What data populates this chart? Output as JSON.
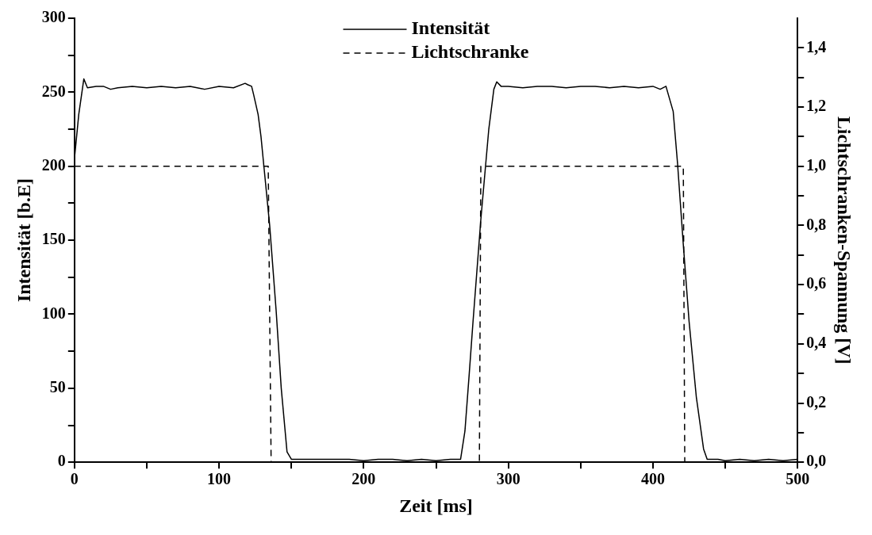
{
  "chart_data": {
    "type": "line",
    "xlabel": "Zeit [ms]",
    "ylabel": "Intensität [b.E]",
    "y2label": "Lichtschranken-Spannung [V]",
    "legend": "top",
    "xlim": [
      0,
      500
    ],
    "ylim": [
      0,
      300
    ],
    "y2lim": [
      0,
      1.5
    ],
    "xticks": [
      0,
      {
        "value": 50,
        "label": null
      },
      100,
      {
        "value": 150,
        "label": null
      },
      200,
      {
        "value": 250,
        "label": null
      },
      300,
      {
        "value": 350,
        "label": null
      },
      400,
      {
        "value": 450,
        "label": null
      },
      500
    ],
    "yticks": [
      0,
      {
        "value": 25,
        "label": null
      },
      50,
      {
        "value": 75,
        "label": null
      },
      100,
      {
        "value": 125,
        "label": null
      },
      150,
      {
        "value": 175,
        "label": null
      },
      200,
      {
        "value": 225,
        "label": null
      },
      250,
      {
        "value": 275,
        "label": null
      },
      300
    ],
    "y2ticks": [
      {
        "value": 0,
        "label": "0,0"
      },
      {
        "value": 0.1,
        "label": null
      },
      {
        "value": 0.2,
        "label": "0,2"
      },
      {
        "value": 0.3,
        "label": null
      },
      {
        "value": 0.4,
        "label": "0,4"
      },
      {
        "value": 0.5,
        "label": null
      },
      {
        "value": 0.6,
        "label": "0,6"
      },
      {
        "value": 0.7,
        "label": null
      },
      {
        "value": 0.8,
        "label": "0,8"
      },
      {
        "value": 0.9,
        "label": null
      },
      {
        "value": 1.0,
        "label": "1,0"
      },
      {
        "value": 1.1,
        "label": null
      },
      {
        "value": 1.2,
        "label": "1,2"
      },
      {
        "value": 1.3,
        "label": null
      },
      {
        "value": 1.4,
        "label": "1,4"
      }
    ],
    "series": [
      {
        "name": "Intensität",
        "color": "#000000",
        "line_style": "solid",
        "x": [
          0,
          3,
          6.5,
          9,
          15,
          20,
          25,
          30,
          40,
          50,
          60,
          70,
          80,
          90,
          100,
          110,
          118,
          120,
          122.5,
          124,
          127,
          129,
          131,
          135,
          139.5,
          143,
          147,
          150,
          160,
          170,
          180,
          190,
          200,
          210,
          220,
          230,
          240,
          250,
          260,
          267,
          270,
          273,
          275.6,
          281,
          286.5,
          290,
          292,
          295,
          300,
          310,
          320,
          330,
          340,
          350,
          360,
          370,
          380,
          390,
          400,
          405,
          409,
          414,
          417,
          421,
          425,
          430,
          435,
          437.5,
          445,
          450,
          460,
          470,
          480,
          490,
          500
        ],
        "values": [
          205,
          235,
          259,
          253,
          254,
          254,
          252,
          253,
          254,
          253,
          254,
          253,
          254,
          252,
          254,
          253,
          256,
          255,
          254,
          248,
          235,
          220,
          200,
          160,
          102,
          50,
          7,
          2,
          2,
          2,
          2,
          2,
          1,
          2,
          2,
          1,
          2,
          1,
          2,
          2,
          21,
          60,
          95,
          164,
          225,
          252,
          257,
          254,
          254,
          253,
          254,
          254,
          253,
          254,
          254,
          253,
          254,
          253,
          254,
          252,
          254,
          237,
          202,
          147,
          95,
          44,
          9,
          2,
          2,
          1,
          2,
          1,
          2,
          1,
          2
        ]
      },
      {
        "name": "Lichtschranke",
        "color": "#000000",
        "line_style": "dashed",
        "axis": "y2",
        "x": [
          0,
          134,
          136,
          280,
          281,
          421,
          422,
          500
        ],
        "values": [
          1.0,
          1.0,
          0.0,
          0.0,
          1.0,
          1.0,
          0.0,
          0.0
        ]
      }
    ]
  }
}
